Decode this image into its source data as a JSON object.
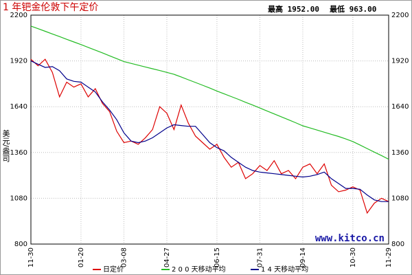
{
  "chart_data": {
    "type": "line",
    "title": "1 年钯金伦敦下午定价",
    "annotations": [
      "最高 1952.00",
      "最低 963.00",
      "www.kitco.cn"
    ],
    "y_label": "美元/盎司",
    "categories": [
      "11-30",
      null,
      null,
      null,
      null,
      null,
      null,
      "01-20",
      null,
      null,
      null,
      null,
      null,
      "03-08",
      null,
      null,
      null,
      null,
      null,
      "04-27",
      null,
      null,
      null,
      null,
      null,
      null,
      "06-15",
      null,
      null,
      null,
      null,
      null,
      "07-31",
      null,
      null,
      null,
      null,
      null,
      "09-14",
      null,
      null,
      null,
      null,
      null,
      null,
      "10-30",
      null,
      null,
      null,
      null,
      "11-29"
    ],
    "ylim": [
      800,
      2200
    ],
    "yticks": [
      800,
      1080,
      1360,
      1640,
      1920,
      2200
    ],
    "grid": true,
    "series": [
      {
        "name": "日定价",
        "color": "#dd0000",
        "values": [
          1930,
          1890,
          1930,
          1850,
          1700,
          1790,
          1760,
          1780,
          1700,
          1750,
          1660,
          1610,
          1490,
          1420,
          1430,
          1410,
          1450,
          1500,
          1640,
          1600,
          1500,
          1650,
          1540,
          1460,
          1420,
          1380,
          1410,
          1330,
          1270,
          1300,
          1200,
          1230,
          1280,
          1250,
          1310,
          1230,
          1250,
          1200,
          1270,
          1290,
          1230,
          1290,
          1160,
          1120,
          1130,
          1150,
          1130,
          990,
          1050,
          1080,
          1060
        ]
      },
      {
        "name": "2 0 0 天移动平均",
        "color": "#22bb22",
        "values": [
          2133,
          2117,
          2101,
          2085,
          2069,
          2052,
          2036,
          2020,
          2003,
          1986,
          1969,
          1951,
          1934,
          1916,
          1905,
          1894,
          1883,
          1872,
          1861,
          1850,
          1838,
          1822,
          1805,
          1788,
          1771,
          1754,
          1736,
          1719,
          1702,
          1685,
          1667,
          1650,
          1632,
          1614,
          1596,
          1578,
          1560,
          1542,
          1523,
          1510,
          1497,
          1484,
          1471,
          1458,
          1443,
          1427,
          1406,
          1384,
          1362,
          1341,
          1319
        ]
      },
      {
        "name": "1 4 天移动平均",
        "color": "#00008b",
        "values": [
          1920,
          1900,
          1880,
          1885,
          1860,
          1810,
          1795,
          1790,
          1760,
          1730,
          1670,
          1620,
          1560,
          1480,
          1430,
          1420,
          1430,
          1450,
          1480,
          1510,
          1530,
          1525,
          1520,
          1520,
          1470,
          1420,
          1390,
          1370,
          1330,
          1300,
          1270,
          1250,
          1240,
          1235,
          1230,
          1225,
          1220,
          1215,
          1210,
          1215,
          1225,
          1240,
          1200,
          1170,
          1140,
          1140,
          1135,
          1100,
          1070,
          1060,
          1060
        ]
      }
    ]
  }
}
